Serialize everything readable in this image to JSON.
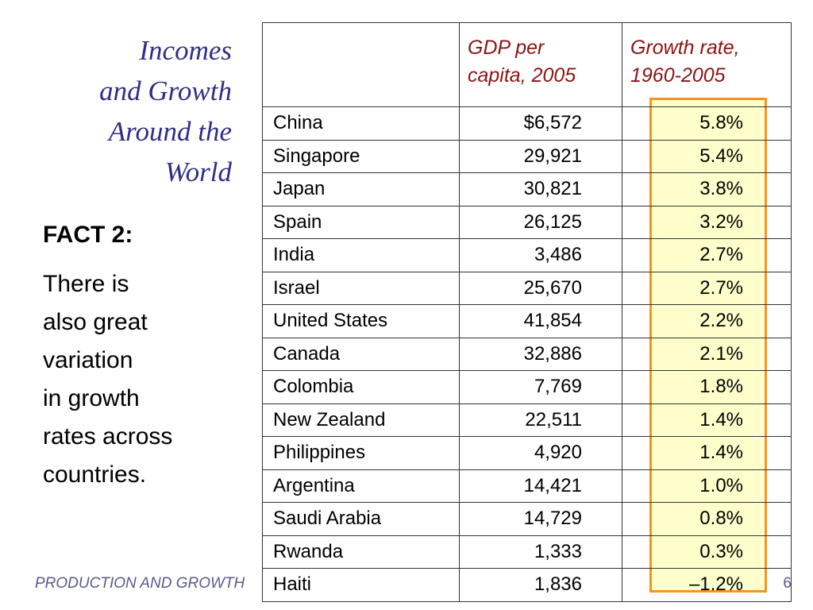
{
  "slide": {
    "title_lines": [
      "Incomes",
      "and Growth",
      "Around the",
      "World"
    ],
    "fact_heading": "FACT 2:",
    "fact_lines": [
      "There is",
      "also great",
      "variation",
      "in growth",
      "rates across",
      "countries."
    ],
    "footer": "PRODUCTION AND GROWTH",
    "page_number": "6"
  },
  "table": {
    "headers": {
      "country": "",
      "gdp": [
        "GDP per",
        "capita, 2005"
      ],
      "growth": [
        "Growth rate,",
        "1960-2005"
      ]
    },
    "rows": [
      {
        "country": "China",
        "gdp": "$6,572",
        "growth": "5.8%"
      },
      {
        "country": "Singapore",
        "gdp": "29,921",
        "growth": "5.4%"
      },
      {
        "country": "Japan",
        "gdp": "30,821",
        "growth": "3.8%"
      },
      {
        "country": "Spain",
        "gdp": "26,125",
        "growth": "3.2%"
      },
      {
        "country": "India",
        "gdp": "3,486",
        "growth": "2.7%"
      },
      {
        "country": "Israel",
        "gdp": "25,670",
        "growth": "2.7%"
      },
      {
        "country": "United States",
        "gdp": "41,854",
        "growth": "2.2%"
      },
      {
        "country": "Canada",
        "gdp": "32,886",
        "growth": "2.1%"
      },
      {
        "country": "Colombia",
        "gdp": "7,769",
        "growth": "1.8%"
      },
      {
        "country": "New Zealand",
        "gdp": "22,511",
        "growth": "1.4%"
      },
      {
        "country": "Philippines",
        "gdp": "4,920",
        "growth": "1.4%"
      },
      {
        "country": "Argentina",
        "gdp": "14,421",
        "growth": "1.0%"
      },
      {
        "country": "Saudi Arabia",
        "gdp": "14,729",
        "growth": "0.8%"
      },
      {
        "country": "Rwanda",
        "gdp": "1,333",
        "growth": "0.3%"
      },
      {
        "country": "Haiti",
        "gdp": "1,836",
        "growth": "–1.2%"
      }
    ]
  },
  "colors": {
    "title": "#2f2f86",
    "header_text": "#8b1414",
    "highlight_fill": "#ffffcc",
    "highlight_border": "#f7941d"
  }
}
